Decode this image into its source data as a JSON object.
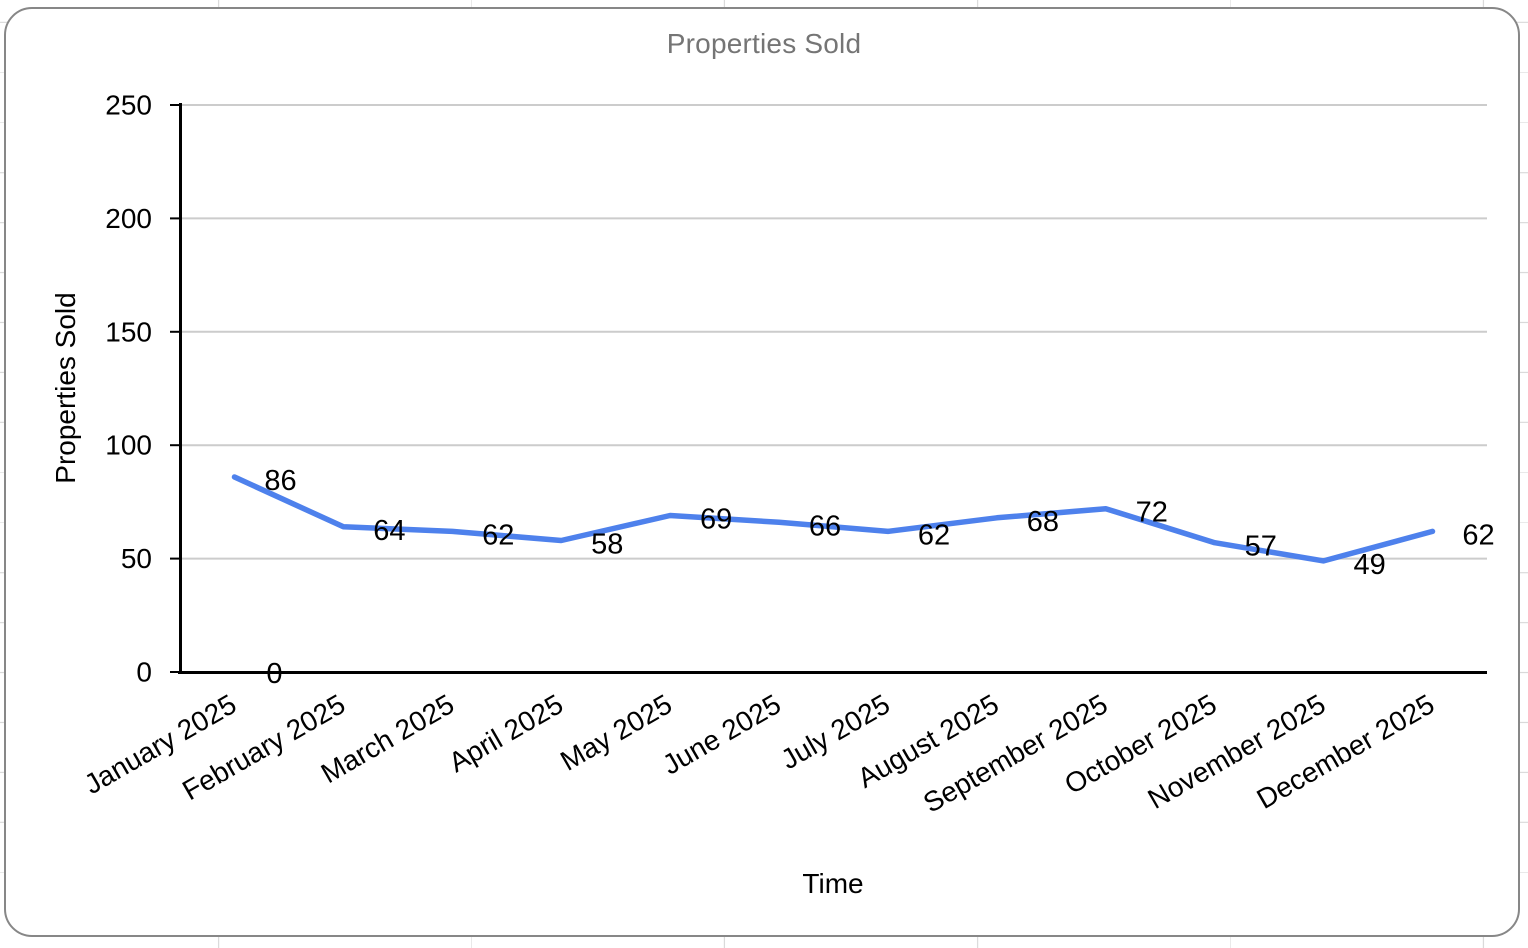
{
  "chart_data": {
    "type": "line",
    "title": "Properties Sold",
    "xlabel": "Time",
    "ylabel": "Properties Sold",
    "categories": [
      "January 2025",
      "February 2025",
      "March 2025",
      "April 2025",
      "May 2025",
      "June 2025",
      "July 2025",
      "August 2025",
      "September 2025",
      "October 2025",
      "November 2025",
      "December 2025"
    ],
    "series": [
      {
        "name": "Properties Sold",
        "color": "#4e81ec",
        "values": [
          86,
          64,
          62,
          58,
          69,
          66,
          62,
          68,
          72,
          57,
          49,
          62
        ]
      }
    ],
    "extra_point_labels": [
      {
        "category": "January 2025",
        "value": 0
      }
    ],
    "data_labels": true,
    "ylim": [
      0,
      250
    ],
    "yticks": [
      0,
      50,
      100,
      150,
      200,
      250
    ],
    "grid": "horizontal-only",
    "legend": "none",
    "x_label_rotation_deg": -30,
    "title_color": "#757575",
    "axis_color": "#000000",
    "gridline_color": "#cccccc",
    "label_color": "#000000"
  }
}
